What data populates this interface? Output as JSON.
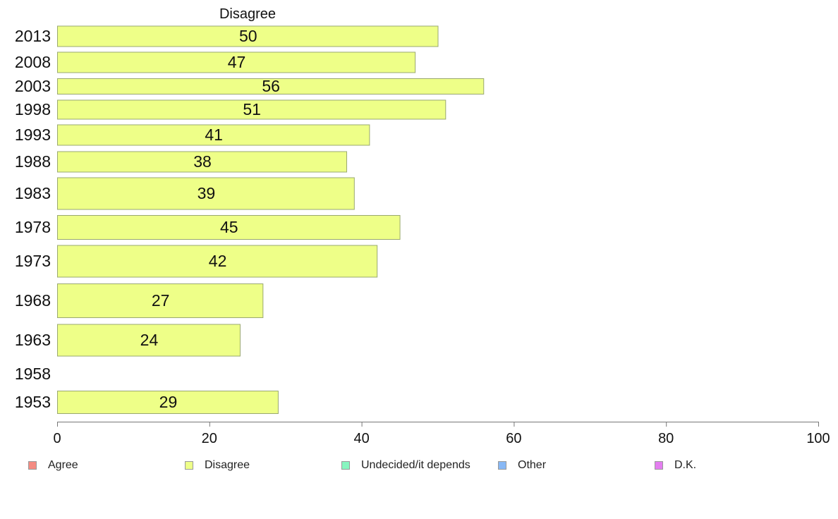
{
  "chart_data": {
    "type": "bar",
    "orientation": "horizontal",
    "title": "Disagree",
    "categories": [
      "2013",
      "2008",
      "2003",
      "1998",
      "1993",
      "1988",
      "1983",
      "1978",
      "1973",
      "1968",
      "1963",
      "1958",
      "1953"
    ],
    "series": [
      {
        "name": "Disagree",
        "values": [
          50,
          47,
          56,
          51,
          41,
          38,
          39,
          45,
          42,
          27,
          24,
          null,
          29
        ]
      }
    ],
    "data_labels": [
      "50",
      "47",
      "56",
      "51",
      "41",
      "38",
      "39",
      "45",
      "42",
      "27",
      "24",
      "",
      "29"
    ],
    "xlim": [
      0,
      100
    ],
    "xticks": [
      "0",
      "20",
      "40",
      "60",
      "80",
      "100"
    ],
    "grid": false,
    "bar_color": "#eeff88",
    "bar_stroke": "#9aa870"
  },
  "legend": {
    "position": "bottom",
    "items": [
      {
        "label": "Agree",
        "color": "#f48b82"
      },
      {
        "label": "Disagree",
        "color": "#eeff88"
      },
      {
        "label": "Undecided/it depends",
        "color": "#88f5c0"
      },
      {
        "label": "Other",
        "color": "#88b8f5"
      },
      {
        "label": "D.K.",
        "color": "#e47ef0"
      }
    ]
  }
}
